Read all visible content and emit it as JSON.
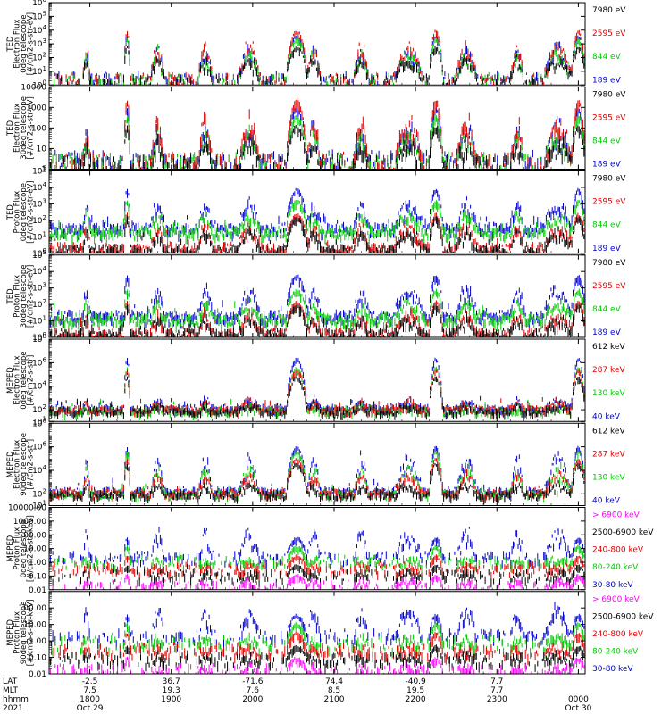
{
  "chart_data": {
    "type": "line",
    "figure": "POES/MetOp SEM-2 stacked time-series panels",
    "time_axis": {
      "hhmm_ticks": [
        "1800",
        "1900",
        "2000",
        "2100",
        "2200",
        "2300",
        "0000"
      ],
      "lat_ticks": [
        "-2.5",
        "36.7",
        "-71.6",
        "74.4",
        "-40.9",
        "7.7",
        ""
      ],
      "mlt_ticks": [
        "7.5",
        "19.3",
        "7.6",
        "8.5",
        "19.5",
        "7.7",
        ""
      ],
      "date_ticks": [
        "Oct 29",
        "",
        "",
        "",
        "",
        "",
        "Oct 30"
      ],
      "row_labels": [
        "LAT",
        "MLT",
        "hhmm",
        "2021"
      ],
      "start": "2021-10-29 17:30",
      "end": "2021-10-30 00:05"
    },
    "passes": [
      {
        "start": "17:55",
        "end": "18:00",
        "kind": "polar"
      },
      {
        "start": "18:25",
        "end": "18:30",
        "kind": "saa"
      },
      {
        "start": "18:45",
        "end": "18:55",
        "kind": "polar"
      },
      {
        "start": "19:20",
        "end": "19:30",
        "kind": "polar"
      },
      {
        "start": "19:50",
        "end": "20:05",
        "kind": "polar"
      },
      {
        "start": "20:25",
        "end": "20:40",
        "kind": "saa"
      },
      {
        "start": "20:40",
        "end": "20:50",
        "kind": "polar"
      },
      {
        "start": "21:15",
        "end": "21:25",
        "kind": "polar"
      },
      {
        "start": "21:45",
        "end": "22:05",
        "kind": "polar"
      },
      {
        "start": "22:10",
        "end": "22:20",
        "kind": "saa"
      },
      {
        "start": "22:30",
        "end": "22:45",
        "kind": "polar"
      },
      {
        "start": "23:10",
        "end": "23:20",
        "kind": "polar"
      },
      {
        "start": "23:35",
        "end": "23:55",
        "kind": "polar"
      },
      {
        "start": "23:55",
        "end": "00:05",
        "kind": "saa"
      }
    ],
    "panels": [
      {
        "ylabel": [
          "TED",
          "Electron Flux",
          "0deg telescope",
          "[#/cm2-s-str-eV]"
        ],
        "yscale": "log",
        "ylim": [
          1,
          1000000
        ],
        "ticks": [
          {
            "v": 1,
            "t": "10^0"
          },
          {
            "v": 10,
            "t": "10^1"
          },
          {
            "v": 100,
            "t": "10^2"
          },
          {
            "v": 1000,
            "t": "10^3"
          },
          {
            "v": 10000,
            "t": "10^4"
          },
          {
            "v": 100000,
            "t": "10^5"
          },
          {
            "v": 1000000,
            "t": "10^6"
          }
        ],
        "series": [
          {
            "name": "7980 eV",
            "color": "#000000",
            "kind": "ted_e",
            "typ": [
              0.7,
              2.2
            ],
            "bg": 0.3
          },
          {
            "name": "2595 eV",
            "color": "#e00000",
            "kind": "ted_e",
            "typ": [
              0.9,
              3.4
            ],
            "bg": 0.4
          },
          {
            "name": "844 eV",
            "color": "#00cc00",
            "kind": "ted_e",
            "typ": [
              0.8,
              2.8
            ],
            "bg": 0.4
          },
          {
            "name": "189 eV",
            "color": "#0000d0",
            "kind": "ted_e",
            "typ": [
              0.9,
              3.0
            ],
            "bg": 0.5
          }
        ]
      },
      {
        "ylabel": [
          "TED",
          "Electron Flux",
          "30deg telescope",
          "[#/cm2-s-str-eV]"
        ],
        "yscale": "log",
        "ylim": [
          1,
          10000
        ],
        "ticks": [
          {
            "v": 1,
            "t": "1"
          },
          {
            "v": 10,
            "t": "10"
          },
          {
            "v": 100,
            "t": "100"
          },
          {
            "v": 1000,
            "t": "1000"
          },
          {
            "v": 10000,
            "t": "10000"
          }
        ],
        "series": [
          {
            "name": "7980 eV",
            "color": "#000000",
            "kind": "ted_e",
            "typ": [
              0.3,
              1.5
            ],
            "bg": 0.2
          },
          {
            "name": "2595 eV",
            "color": "#e00000",
            "kind": "ted_e",
            "typ": [
              0.6,
              2.8
            ],
            "bg": 0.3
          },
          {
            "name": "844 eV",
            "color": "#00cc00",
            "kind": "ted_e",
            "typ": [
              0.5,
              2.0
            ],
            "bg": 0.3
          },
          {
            "name": "189 eV",
            "color": "#0000d0",
            "kind": "ted_e",
            "typ": [
              0.6,
              2.4
            ],
            "bg": 0.4
          }
        ]
      },
      {
        "ylabel": [
          "TED",
          "Proton Flux",
          "0deg telescope",
          "[#/cm2-s-str-eV]"
        ],
        "yscale": "log",
        "ylim": [
          1,
          100000
        ],
        "ticks": [
          {
            "v": 1,
            "t": "10^0"
          },
          {
            "v": 10,
            "t": "10^1"
          },
          {
            "v": 100,
            "t": "10^2"
          },
          {
            "v": 1000,
            "t": "10^3"
          },
          {
            "v": 10000,
            "t": "10^4"
          },
          {
            "v": 100000,
            "t": "10^5"
          }
        ],
        "series": [
          {
            "name": "7980 eV",
            "color": "#000000",
            "kind": "ted_p",
            "typ": [
              0.5,
              1.6
            ],
            "bg": 0.3
          },
          {
            "name": "2595 eV",
            "color": "#e00000",
            "kind": "ted_p",
            "typ": [
              0.8,
              1.8
            ],
            "bg": 0.4
          },
          {
            "name": "844 eV",
            "color": "#00cc00",
            "kind": "ted_p",
            "typ": [
              1.6,
              2.6
            ],
            "bg": 1.4
          },
          {
            "name": "189 eV",
            "color": "#0000d0",
            "kind": "ted_p",
            "typ": [
              1.9,
              3.3
            ],
            "bg": 1.6
          }
        ]
      },
      {
        "ylabel": [
          "TED",
          "Proton Flux",
          "30deg telescope",
          "[#/cm2-s-str-eV]"
        ],
        "yscale": "log",
        "ylim": [
          1,
          100000
        ],
        "ticks": [
          {
            "v": 1,
            "t": "10^0"
          },
          {
            "v": 10,
            "t": "10^1"
          },
          {
            "v": 100,
            "t": "10^2"
          },
          {
            "v": 1000,
            "t": "10^3"
          },
          {
            "v": 10000,
            "t": "10^4"
          },
          {
            "v": 100000,
            "t": "10^5"
          }
        ],
        "series": [
          {
            "name": "7980 eV",
            "color": "#000000",
            "kind": "ted_p",
            "typ": [
              0.4,
              1.4
            ],
            "bg": 0.3
          },
          {
            "name": "2595 eV",
            "color": "#e00000",
            "kind": "ted_p",
            "typ": [
              0.6,
              1.6
            ],
            "bg": 0.3
          },
          {
            "name": "844 eV",
            "color": "#00cc00",
            "kind": "ted_p",
            "typ": [
              1.3,
              2.3
            ],
            "bg": 1.2
          },
          {
            "name": "189 eV",
            "color": "#0000d0",
            "kind": "ted_p",
            "typ": [
              1.8,
              3.2
            ],
            "bg": 1.4
          }
        ]
      },
      {
        "ylabel": [
          "MEPED",
          "Electron Flux",
          "0deg telescope",
          "[#/cm2-s-str]"
        ],
        "yscale": "log",
        "ylim": [
          10,
          100000000
        ],
        "ticks": [
          {
            "v": 10,
            "t": "10^1"
          },
          {
            "v": 100,
            "t": "10^2"
          },
          {
            "v": 10000,
            "t": "10^4"
          },
          {
            "v": 1000000,
            "t": "10^6"
          },
          {
            "v": 100000000,
            "t": "10^8"
          }
        ],
        "series": [
          {
            "name": "612 keV",
            "color": "#000000",
            "kind": "mep_e",
            "typ": [
              2.0,
              2.6
            ],
            "bg": 2.0,
            "saa": 4.8
          },
          {
            "name": "287 keV",
            "color": "#e00000",
            "kind": "mep_e",
            "typ": [
              2.1,
              2.9
            ],
            "bg": 2.1,
            "saa": 5.4
          },
          {
            "name": "130 keV",
            "color": "#00cc00",
            "kind": "mep_e",
            "typ": [
              2.0,
              2.4
            ],
            "bg": 2.0,
            "saa": 5.6
          },
          {
            "name": "40 keV",
            "color": "#0000d0",
            "kind": "mep_e",
            "typ": [
              2.2,
              3.0
            ],
            "bg": 2.2,
            "saa": 6.4
          }
        ]
      },
      {
        "ylabel": [
          "MEPED",
          "Electron Flux",
          "90deg telescope",
          "[#/cm2-s-str]"
        ],
        "yscale": "log",
        "ylim": [
          10,
          100000000
        ],
        "ticks": [
          {
            "v": 10,
            "t": "10^1"
          },
          {
            "v": 100,
            "t": "10^2"
          },
          {
            "v": 10000,
            "t": "10^4"
          },
          {
            "v": 1000000,
            "t": "10^6"
          },
          {
            "v": 100000000,
            "t": "10^8"
          }
        ],
        "series": [
          {
            "name": "612 keV",
            "color": "#000000",
            "kind": "mep_e",
            "typ": [
              2.0,
              3.0
            ],
            "bg": 2.0,
            "saa": 4.6
          },
          {
            "name": "287 keV",
            "color": "#e00000",
            "kind": "mep_e",
            "typ": [
              2.3,
              4.0
            ],
            "bg": 2.2,
            "saa": 5.0
          },
          {
            "name": "130 keV",
            "color": "#00cc00",
            "kind": "mep_e",
            "typ": [
              2.2,
              4.8
            ],
            "bg": 2.1,
            "saa": 5.6
          },
          {
            "name": "40 keV",
            "color": "#0000d0",
            "kind": "mep_e",
            "typ": [
              2.4,
              5.6
            ],
            "bg": 2.3,
            "saa": 6.0
          }
        ]
      },
      {
        "ylabel": [
          "MEPED",
          "Proton Flux",
          "0deg telescope",
          "[#/cm2-s-str-keV]"
        ],
        "yscale": "log",
        "ylim": [
          0.01,
          10000
        ],
        "ticks": [
          {
            "v": 0.01,
            "t": "0.01"
          },
          {
            "v": 0.1,
            "t": "0.10"
          },
          {
            "v": 1,
            "t": "1.00"
          },
          {
            "v": 10,
            "t": "10.00"
          },
          {
            "v": 100,
            "t": "100.00"
          },
          {
            "v": 1000,
            "t": "1000.00"
          },
          {
            "v": 10000,
            "t": "10000.00"
          }
        ],
        "series": [
          {
            "name": "> 6900 keV",
            "color": "#ff00ff",
            "kind": "mep_p",
            "typ": [
              -1.7,
              -1.3
            ],
            "bg": -1.8,
            "saa": -0.9
          },
          {
            "name": "2500-6900 keV",
            "color": "#000000",
            "kind": "mep_p",
            "typ": [
              -1.0,
              -0.7
            ],
            "bg": -1.0,
            "saa": -0.2
          },
          {
            "name": "240-800 keV",
            "color": "#e00000",
            "kind": "mep_p",
            "typ": [
              -0.5,
              -0.1
            ],
            "bg": -0.5,
            "saa": 0.5
          },
          {
            "name": "80-240 keV",
            "color": "#00cc00",
            "kind": "mep_p",
            "typ": [
              0.0,
              0.3
            ],
            "bg": 0.0,
            "saa": 1.2
          },
          {
            "name": "30-80 keV",
            "color": "#0000d0",
            "kind": "mep_p",
            "typ": [
              0.4,
              2.6
            ],
            "bg": 0.3,
            "saa": 1.8
          }
        ]
      },
      {
        "ylabel": [
          "MEPED",
          "Proton Flux",
          "90deg telescope",
          "[#/cm2-s-str-keV]"
        ],
        "yscale": "log",
        "ylim": [
          0.01,
          1000
        ],
        "ticks": [
          {
            "v": 0.01,
            "t": "0.01"
          },
          {
            "v": 0.1,
            "t": "0.10"
          },
          {
            "v": 1,
            "t": "1.00"
          },
          {
            "v": 10,
            "t": "10.00"
          },
          {
            "v": 100,
            "t": "100.00"
          }
        ],
        "series": [
          {
            "name": "> 6900 keV",
            "color": "#ff00ff",
            "kind": "mep_p",
            "typ": [
              -1.8,
              -1.5
            ],
            "bg": -1.9,
            "saa": -1.0
          },
          {
            "name": "2500-6900 keV",
            "color": "#000000",
            "kind": "mep_p",
            "typ": [
              -1.1,
              -0.8
            ],
            "bg": -1.2,
            "saa": -0.3
          },
          {
            "name": "240-800 keV",
            "color": "#e00000",
            "kind": "mep_p",
            "typ": [
              -0.6,
              -0.3
            ],
            "bg": -0.6,
            "saa": 0.5
          },
          {
            "name": "80-240 keV",
            "color": "#00cc00",
            "kind": "mep_p",
            "typ": [
              -0.2,
              0.3
            ],
            "bg": -0.2,
            "saa": 1.1
          },
          {
            "name": "30-80 keV",
            "color": "#0000d0",
            "kind": "mep_p",
            "typ": [
              0.3,
              2.3
            ],
            "bg": 0.2,
            "saa": 1.6
          }
        ]
      }
    ]
  }
}
